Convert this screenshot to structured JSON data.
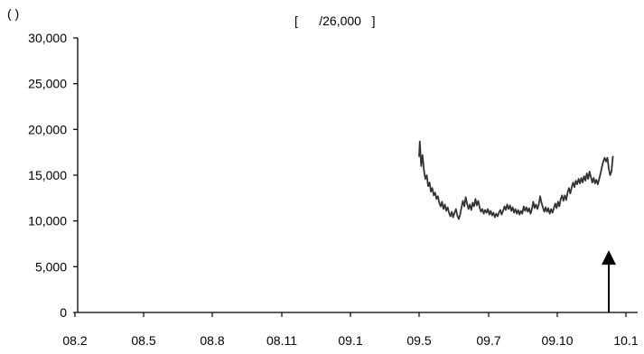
{
  "chart_data": {
    "type": "line",
    "title": "[      /26,000   ]",
    "ylabel": "(   )",
    "xlabel": "",
    "ylim": [
      0,
      30000
    ],
    "yticks": [
      0,
      5000,
      10000,
      15000,
      20000,
      25000,
      30000
    ],
    "ytick_labels": [
      "0",
      "5,000",
      "10,000",
      "15,000",
      "20,000",
      "25,000",
      "30,000"
    ],
    "x_categories": [
      "08.2",
      "08.5",
      "08.8",
      "08.11",
      "09.1",
      "09.5",
      "09.7",
      "09.10",
      "10.1"
    ],
    "grid": false,
    "legend": "none",
    "line_color": "#333333",
    "series": [
      {
        "points": [
          [
            5.0,
            17000
          ],
          [
            5.01,
            18700
          ],
          [
            5.03,
            16000
          ],
          [
            5.05,
            17200
          ],
          [
            5.07,
            15500
          ],
          [
            5.09,
            14600
          ],
          [
            5.11,
            15000
          ],
          [
            5.13,
            13800
          ],
          [
            5.15,
            14200
          ],
          [
            5.17,
            13200
          ],
          [
            5.19,
            13600
          ],
          [
            5.21,
            12800
          ],
          [
            5.23,
            13100
          ],
          [
            5.25,
            12400
          ],
          [
            5.27,
            12700
          ],
          [
            5.29,
            12000
          ],
          [
            5.31,
            11600
          ],
          [
            5.33,
            12100
          ],
          [
            5.35,
            11300
          ],
          [
            5.37,
            11800
          ],
          [
            5.39,
            11100
          ],
          [
            5.41,
            11500
          ],
          [
            5.43,
            10900
          ],
          [
            5.45,
            10500
          ],
          [
            5.47,
            11000
          ],
          [
            5.49,
            10400
          ],
          [
            5.51,
            10900
          ],
          [
            5.53,
            11300
          ],
          [
            5.55,
            10600
          ],
          [
            5.57,
            10200
          ],
          [
            5.59,
            10700
          ],
          [
            5.61,
            11500
          ],
          [
            5.63,
            12200
          ],
          [
            5.65,
            11600
          ],
          [
            5.67,
            12600
          ],
          [
            5.69,
            11900
          ],
          [
            5.71,
            11300
          ],
          [
            5.73,
            11800
          ],
          [
            5.75,
            11200
          ],
          [
            5.77,
            12000
          ],
          [
            5.79,
            11600
          ],
          [
            5.81,
            12400
          ],
          [
            5.83,
            11700
          ],
          [
            5.85,
            12200
          ],
          [
            5.87,
            11500
          ],
          [
            5.89,
            11000
          ],
          [
            5.91,
            11300
          ],
          [
            5.93,
            10800
          ],
          [
            5.95,
            11200
          ],
          [
            5.97,
            10900
          ],
          [
            5.99,
            11300
          ],
          [
            6.01,
            10700
          ],
          [
            6.03,
            11100
          ],
          [
            6.05,
            10600
          ],
          [
            6.07,
            10900
          ],
          [
            6.09,
            10400
          ],
          [
            6.11,
            10800
          ],
          [
            6.13,
            10500
          ],
          [
            6.15,
            10900
          ],
          [
            6.17,
            11200
          ],
          [
            6.19,
            10700
          ],
          [
            6.21,
            11100
          ],
          [
            6.23,
            11600
          ],
          [
            6.25,
            11200
          ],
          [
            6.27,
            11800
          ],
          [
            6.29,
            11300
          ],
          [
            6.31,
            11700
          ],
          [
            6.33,
            11100
          ],
          [
            6.35,
            11500
          ],
          [
            6.37,
            10900
          ],
          [
            6.39,
            11300
          ],
          [
            6.41,
            10800
          ],
          [
            6.43,
            11200
          ],
          [
            6.45,
            10700
          ],
          [
            6.47,
            11100
          ],
          [
            6.49,
            10800
          ],
          [
            6.51,
            11600
          ],
          [
            6.53,
            11100
          ],
          [
            6.55,
            11500
          ],
          [
            6.57,
            11000
          ],
          [
            6.59,
            11400
          ],
          [
            6.61,
            10800
          ],
          [
            6.63,
            11300
          ],
          [
            6.65,
            12100
          ],
          [
            6.67,
            11400
          ],
          [
            6.69,
            11800
          ],
          [
            6.71,
            11300
          ],
          [
            6.73,
            11800
          ],
          [
            6.75,
            12700
          ],
          [
            6.77,
            12000
          ],
          [
            6.79,
            11500
          ],
          [
            6.81,
            11000
          ],
          [
            6.83,
            11500
          ],
          [
            6.85,
            11000
          ],
          [
            6.87,
            11400
          ],
          [
            6.89,
            10800
          ],
          [
            6.91,
            11300
          ],
          [
            6.93,
            10900
          ],
          [
            6.95,
            11400
          ],
          [
            6.97,
            11900
          ],
          [
            6.99,
            11400
          ],
          [
            7.01,
            12100
          ],
          [
            7.03,
            11600
          ],
          [
            7.05,
            12400
          ],
          [
            7.07,
            12800
          ],
          [
            7.09,
            12200
          ],
          [
            7.11,
            12800
          ],
          [
            7.13,
            12300
          ],
          [
            7.15,
            13100
          ],
          [
            7.17,
            13600
          ],
          [
            7.19,
            13000
          ],
          [
            7.21,
            13700
          ],
          [
            7.23,
            14200
          ],
          [
            7.25,
            13700
          ],
          [
            7.27,
            14400
          ],
          [
            7.29,
            14000
          ],
          [
            7.31,
            14600
          ],
          [
            7.33,
            14100
          ],
          [
            7.35,
            14700
          ],
          [
            7.37,
            14200
          ],
          [
            7.39,
            14900
          ],
          [
            7.41,
            14400
          ],
          [
            7.43,
            15200
          ],
          [
            7.45,
            14600
          ],
          [
            7.47,
            15400
          ],
          [
            7.49,
            14800
          ],
          [
            7.51,
            14200
          ],
          [
            7.53,
            14700
          ],
          [
            7.55,
            14100
          ],
          [
            7.57,
            14500
          ],
          [
            7.59,
            14000
          ],
          [
            7.61,
            14600
          ],
          [
            7.63,
            15200
          ],
          [
            7.65,
            15900
          ],
          [
            7.67,
            16500
          ],
          [
            7.69,
            16900
          ],
          [
            7.71,
            16500
          ],
          [
            7.73,
            16900
          ],
          [
            7.75,
            15700
          ],
          [
            7.77,
            15000
          ],
          [
            7.79,
            15400
          ],
          [
            7.81,
            17100
          ]
        ]
      }
    ],
    "annotation": {
      "type": "arrow",
      "direction": "up",
      "x": 7.75,
      "y_from": 0,
      "y_to": 6800
    }
  }
}
